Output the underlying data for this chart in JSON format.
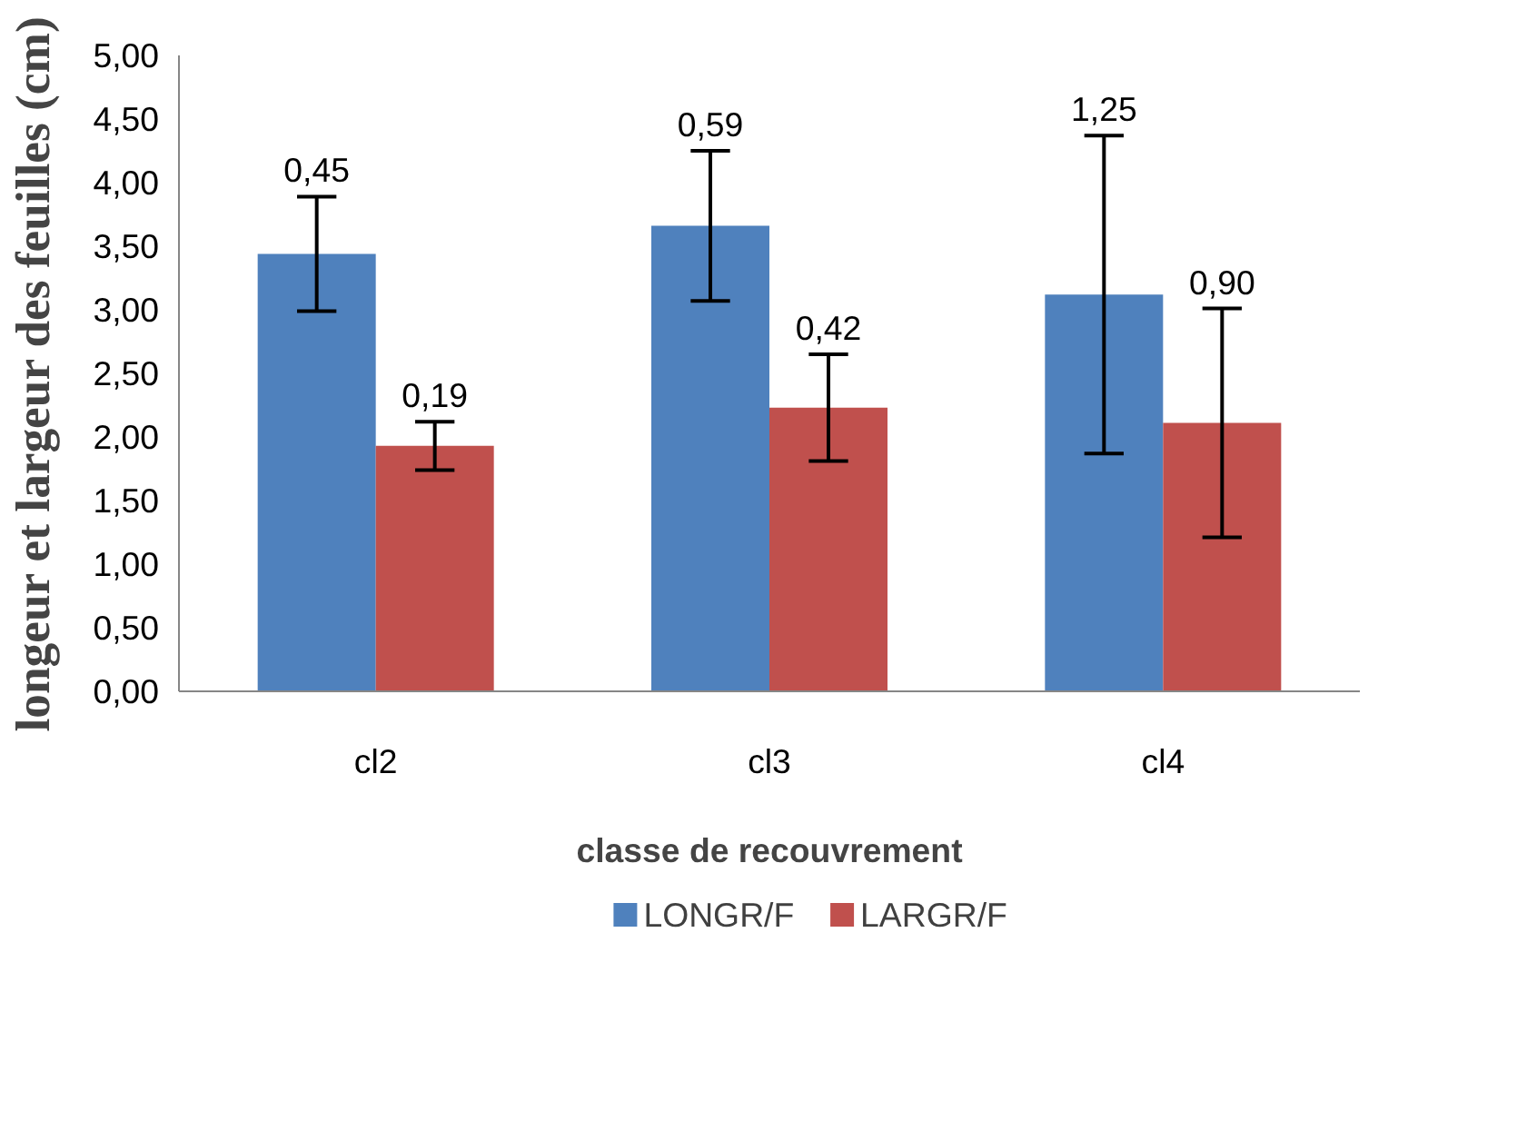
{
  "chart_data": {
    "type": "bar",
    "xlabel": "classe de recouvrement",
    "ylabel": "longeur et largeur des feuilles (cm)",
    "categories": [
      "cl2",
      "cl3",
      "cl4"
    ],
    "series": [
      {
        "name": "LONGR/F",
        "color": "#4f81bd",
        "values": [
          3.44,
          3.66,
          3.12
        ],
        "errors": [
          0.45,
          0.59,
          1.25
        ]
      },
      {
        "name": "LARGR/F",
        "color": "#c0504d",
        "values": [
          1.93,
          2.23,
          2.11
        ],
        "errors": [
          0.19,
          0.42,
          0.9
        ]
      }
    ],
    "ylim": [
      0,
      5
    ],
    "yticks": [
      {
        "value": 0,
        "label": "0,00"
      },
      {
        "value": 0.5,
        "label": "0,50"
      },
      {
        "value": 1,
        "label": "1,00"
      },
      {
        "value": 1.5,
        "label": "1,50"
      },
      {
        "value": 2,
        "label": "2,00"
      },
      {
        "value": 2.5,
        "label": "2,50"
      },
      {
        "value": 3,
        "label": "3,00"
      },
      {
        "value": 3.5,
        "label": "3,50"
      },
      {
        "value": 4,
        "label": "4,00"
      },
      {
        "value": 4.5,
        "label": "4,50"
      },
      {
        "value": 5,
        "label": "5,00"
      }
    ],
    "annotations": [
      "0,45",
      "0,19",
      "0,59",
      "0,42",
      "1,25",
      "0,90"
    ],
    "grid": false,
    "legend": "bottom"
  }
}
